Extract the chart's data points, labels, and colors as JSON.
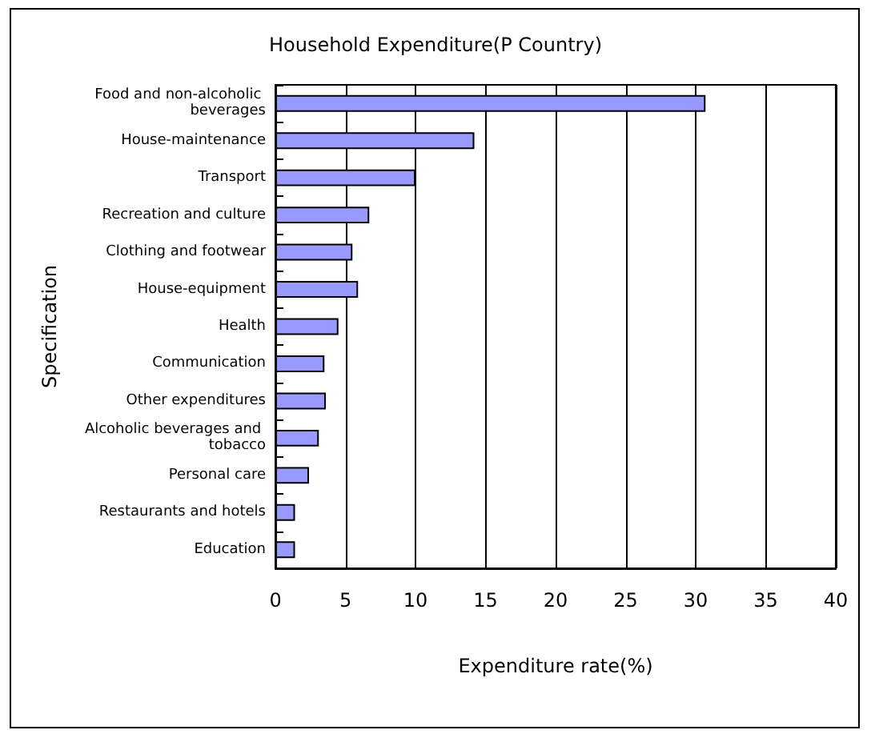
{
  "chart_data": {
    "type": "bar",
    "orientation": "horizontal",
    "title": "Household Expenditure(P Country)",
    "xlabel": "Expenditure rate(%)",
    "ylabel": "Specification",
    "categories": [
      "Food and non-alcoholic beverages",
      "House-maintenance",
      "Transport",
      "Recreation and culture",
      "Clothing and footwear",
      "House-equipment",
      "Health",
      "Communication",
      "Other expenditures",
      "Alcoholic beverages and tobacco",
      "Personal care",
      "Restaurants and hotels",
      "Education"
    ],
    "values": [
      30.7,
      14.2,
      10,
      6.7,
      5.5,
      5.9,
      4.5,
      3.5,
      3.6,
      3.1,
      2.4,
      1.4,
      1.4
    ],
    "color": "#9999ff",
    "xlim": [
      0,
      40
    ],
    "xticks": [
      0,
      5,
      10,
      15,
      20,
      25,
      30,
      35,
      40
    ],
    "grid": "x"
  }
}
